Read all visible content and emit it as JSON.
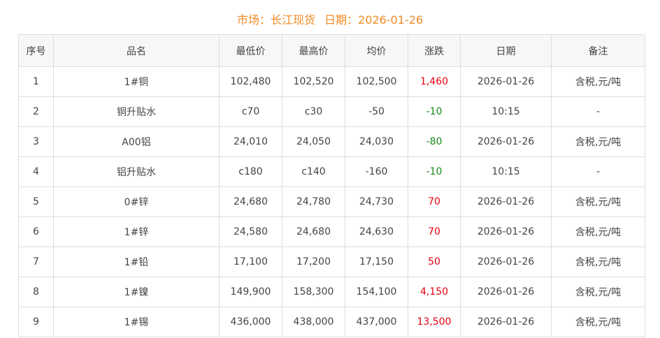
{
  "header": {
    "market_label": "市场：长江现货",
    "date_label": "日期：2026-01-26"
  },
  "colors": {
    "title": "#f08a24",
    "up": "#e60012",
    "down": "#1a8a1a"
  },
  "table": {
    "columns": [
      "序号",
      "品名",
      "最低价",
      "最高价",
      "均价",
      "涨跌",
      "日期",
      "备注"
    ],
    "rows": [
      {
        "no": "1",
        "name": "1#铜",
        "low": "102,480",
        "high": "102,520",
        "avg": "102,500",
        "change": "1,460",
        "dir": "up",
        "date": "2026-01-26",
        "note": "含税,元/吨"
      },
      {
        "no": "2",
        "name": "铜升贴水",
        "low": "c70",
        "high": "c30",
        "avg": "-50",
        "change": "-10",
        "dir": "down",
        "date": "10:15",
        "note": "-"
      },
      {
        "no": "3",
        "name": "A00铝",
        "low": "24,010",
        "high": "24,050",
        "avg": "24,030",
        "change": "-80",
        "dir": "down",
        "date": "2026-01-26",
        "note": "含税,元/吨"
      },
      {
        "no": "4",
        "name": "铝升贴水",
        "low": "c180",
        "high": "c140",
        "avg": "-160",
        "change": "-10",
        "dir": "down",
        "date": "10:15",
        "note": "-"
      },
      {
        "no": "5",
        "name": "0#锌",
        "low": "24,680",
        "high": "24,780",
        "avg": "24,730",
        "change": "70",
        "dir": "up",
        "date": "2026-01-26",
        "note": "含税,元/吨"
      },
      {
        "no": "6",
        "name": "1#锌",
        "low": "24,580",
        "high": "24,680",
        "avg": "24,630",
        "change": "70",
        "dir": "up",
        "date": "2026-01-26",
        "note": "含税,元/吨"
      },
      {
        "no": "7",
        "name": "1#铅",
        "low": "17,100",
        "high": "17,200",
        "avg": "17,150",
        "change": "50",
        "dir": "up",
        "date": "2026-01-26",
        "note": "含税,元/吨"
      },
      {
        "no": "8",
        "name": "1#镍",
        "low": "149,900",
        "high": "158,300",
        "avg": "154,100",
        "change": "4,150",
        "dir": "up",
        "date": "2026-01-26",
        "note": "含税,元/吨"
      },
      {
        "no": "9",
        "name": "1#锡",
        "low": "436,000",
        "high": "438,000",
        "avg": "437,000",
        "change": "13,500",
        "dir": "up",
        "date": "2026-01-26",
        "note": "含税,元/吨"
      }
    ]
  }
}
